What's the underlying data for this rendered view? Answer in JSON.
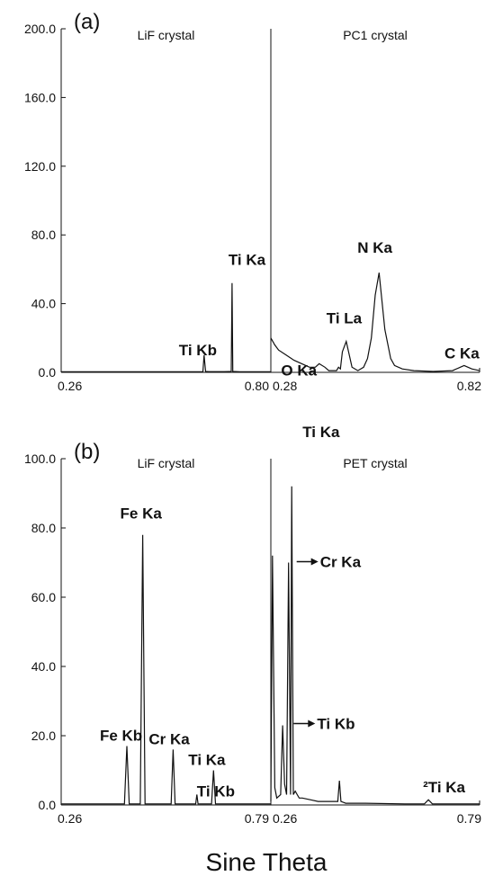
{
  "chart_data": [
    {
      "type": "line",
      "panel_label": "(a)",
      "xlabel": "Sine Theta",
      "ylabel": "",
      "ylim": [
        0,
        200
      ],
      "yticks": [
        "0.0",
        "40.0",
        "80.0",
        "120.0",
        "160.0",
        "200.0"
      ],
      "grid": false,
      "segments": [
        {
          "crystal": "LiF crystal",
          "xlim": [
            0.26,
            0.8
          ],
          "xtick_labels": [
            "0.26",
            "0.80"
          ],
          "x": [
            0.26,
            0.45,
            0.55,
            0.625,
            0.628,
            0.632,
            0.64,
            0.68,
            0.698,
            0.7,
            0.702,
            0.72,
            0.8
          ],
          "y": [
            0.3,
            0.3,
            0.3,
            0.3,
            10,
            0.5,
            0.4,
            0.4,
            0.5,
            52,
            0.5,
            0.3,
            0.3
          ],
          "peaks": [
            {
              "label": "Ti Kb",
              "x": 0.628,
              "y": 10
            },
            {
              "label": "Ti Ka",
              "x": 0.7,
              "y": 52
            }
          ]
        },
        {
          "crystal": "PC1 crystal",
          "xlim": [
            0.28,
            0.82
          ],
          "xtick_labels": [
            "0.28",
            "0.82"
          ],
          "x": [
            0.28,
            0.29,
            0.3,
            0.32,
            0.34,
            0.36,
            0.38,
            0.395,
            0.405,
            0.42,
            0.43,
            0.44,
            0.45,
            0.455,
            0.46,
            0.465,
            0.475,
            0.49,
            0.505,
            0.52,
            0.53,
            0.54,
            0.55,
            0.56,
            0.575,
            0.59,
            0.6,
            0.62,
            0.65,
            0.7,
            0.75,
            0.77,
            0.78,
            0.79,
            0.8,
            0.82
          ],
          "y": [
            20,
            16,
            13,
            10,
            7,
            5,
            3,
            3,
            5,
            3,
            1,
            1,
            1,
            3,
            2,
            12,
            18,
            3,
            1,
            3,
            8,
            20,
            45,
            58,
            25,
            8,
            4,
            2,
            1,
            0.5,
            1,
            3,
            4,
            3,
            2,
            1
          ],
          "peaks": [
            {
              "label": "O Ka",
              "x": 0.395,
              "y": 5
            },
            {
              "label": "Ti La",
              "x": 0.475,
              "y": 18
            },
            {
              "label": "N Ka",
              "x": 0.56,
              "y": 58
            },
            {
              "label": "C Ka",
              "x": 0.785,
              "y": 4
            }
          ]
        }
      ]
    },
    {
      "type": "line",
      "panel_label": "(b)",
      "xlabel": "Sine Theta",
      "ylabel": "",
      "ylim": [
        0,
        100
      ],
      "yticks": [
        "0.0",
        "20.0",
        "40.0",
        "60.0",
        "80.0",
        "100.0"
      ],
      "grid": false,
      "segments": [
        {
          "crystal": "LiF crystal",
          "xlim": [
            0.26,
            0.79
          ],
          "xtick_labels": [
            "0.26",
            "0.79"
          ],
          "x": [
            0.26,
            0.42,
            0.426,
            0.432,
            0.46,
            0.466,
            0.472,
            0.538,
            0.543,
            0.548,
            0.6,
            0.603,
            0.606,
            0.64,
            0.645,
            0.65,
            0.79
          ],
          "y": [
            0.3,
            0.3,
            17,
            0.3,
            0.3,
            78,
            0.3,
            0.3,
            16,
            0.3,
            0.3,
            3,
            0.3,
            0.3,
            10,
            0.3,
            0.3
          ],
          "peaks": [
            {
              "label": "Fe Kb",
              "x": 0.426,
              "y": 17
            },
            {
              "label": "Fe Ka",
              "x": 0.466,
              "y": 78
            },
            {
              "label": "Cr Ka",
              "x": 0.543,
              "y": 16
            },
            {
              "label": "Ti Kb",
              "x": 0.603,
              "y": 3
            },
            {
              "label": "Ti Ka",
              "x": 0.645,
              "y": 10
            }
          ]
        },
        {
          "crystal": "PET crystal",
          "xlim": [
            0.26,
            0.79
          ],
          "xtick_labels": [
            "0.26",
            "0.79"
          ],
          "x": [
            0.26,
            0.264,
            0.27,
            0.275,
            0.285,
            0.29,
            0.295,
            0.3,
            0.305,
            0.31,
            0.313,
            0.317,
            0.322,
            0.327,
            0.332,
            0.34,
            0.36,
            0.38,
            0.4,
            0.42,
            0.43,
            0.434,
            0.438,
            0.45,
            0.5,
            0.6,
            0.65,
            0.66,
            0.67,
            0.7,
            0.79
          ],
          "y": [
            1,
            72,
            5,
            2,
            3,
            23,
            6,
            3,
            70,
            3,
            92,
            3,
            4,
            3,
            2,
            2,
            1.5,
            1,
            1,
            1,
            1,
            7,
            1,
            0.5,
            0.5,
            0.3,
            0.3,
            1.5,
            0.3,
            0.3,
            0.3
          ],
          "peaks": [
            {
              "label": "Ti Ka",
              "x": 0.313,
              "y": 92
            },
            {
              "label": "Cr Ka",
              "x": 0.305,
              "y": 70
            },
            {
              "label": "Ti Kb",
              "x": 0.295,
              "y": 23
            },
            {
              "label": "²Ti Ka",
              "x": 0.66,
              "y": 1.5
            }
          ]
        }
      ]
    }
  ],
  "xaxis_title": "Sine Theta",
  "colors": {
    "line": "#111111",
    "axis": "#111111",
    "background": "#ffffff"
  }
}
